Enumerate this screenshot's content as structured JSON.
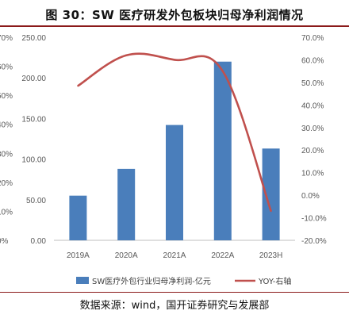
{
  "header": {
    "title": "图 30：SW 医疗研发外包板块归母净利润情况"
  },
  "footer": {
    "source": "数据来源：wind，国开证券研究与发展部"
  },
  "chart_data": {
    "type": "bar",
    "categories": [
      "2019A",
      "2020A",
      "2021A",
      "2022A",
      "2023H"
    ],
    "series": [
      {
        "name": "SW医疗外包行业归母净利润-亿元",
        "kind": "bar",
        "axis": "left",
        "color": "#4a7ebb",
        "values": [
          55,
          88,
          142,
          220,
          113
        ]
      },
      {
        "name": "YOY-右轴",
        "kind": "line",
        "axis": "right",
        "color": "#c0504d",
        "values": [
          48.5,
          62,
          60,
          55,
          -7
        ]
      }
    ],
    "left_axis": {
      "ylim": [
        0,
        250
      ],
      "ticks": [
        "0.00",
        "50.00",
        "100.00",
        "150.00",
        "200.00",
        "250.00"
      ]
    },
    "right_axis": {
      "ylim": [
        -20,
        70
      ],
      "ticks": [
        "-20.0%",
        "-10.0%",
        "0.0%",
        "10.0%",
        "20.0%",
        "30.0%",
        "40.0%",
        "50.0%",
        "60.0%",
        "70.0%"
      ]
    },
    "outer_left_ticks": [
      "0%",
      "10%",
      "20%",
      "30%",
      "40%",
      "50%",
      "60%",
      "70%"
    ],
    "outer_left_ticks_shown": [
      "0%",
      "10%",
      "20%",
      "30%",
      "40%",
      "50%",
      "60%",
      "70%"
    ],
    "grid": false,
    "legend": "bottom"
  }
}
